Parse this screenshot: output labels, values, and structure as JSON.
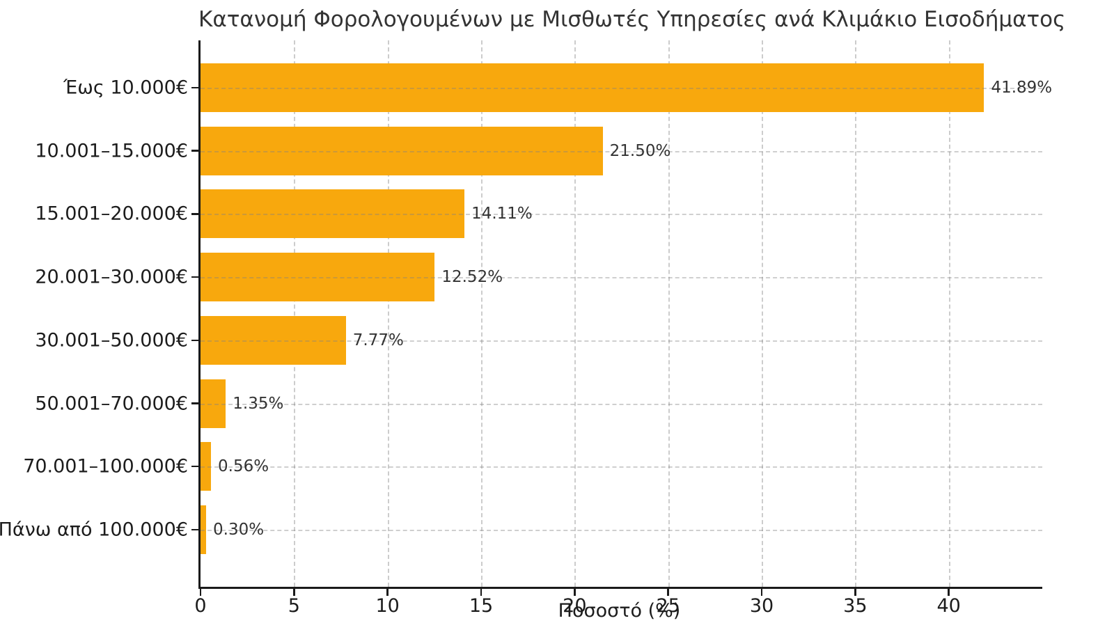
{
  "chart_data": {
    "type": "bar",
    "orientation": "horizontal",
    "title": "Κατανομή Φορολογουμένων με Μισθωτές Υπηρεσίες ανά Κλιμάκιο Εισοδήματος",
    "categories": [
      "Έως 10.000€",
      "10.001–15.000€",
      "15.001–20.000€",
      "20.001–30.000€",
      "30.001–50.000€",
      "50.001–70.000€",
      "70.001–100.000€",
      "Πάνω από 100.000€"
    ],
    "values": [
      41.89,
      21.5,
      14.11,
      12.52,
      7.77,
      1.35,
      0.56,
      0.3
    ],
    "value_labels": [
      "41.89%",
      "21.50%",
      "14.11%",
      "12.52%",
      "7.77%",
      "1.35%",
      "0.56%",
      "0.30%"
    ],
    "xlabel": "Ποσοστό (%)",
    "xlim": [
      0,
      45
    ],
    "xticks": [
      0,
      5,
      10,
      15,
      20,
      25,
      30,
      35,
      40
    ],
    "xtick_labels": [
      "0",
      "5",
      "10",
      "15",
      "20",
      "25",
      "30",
      "35",
      "40"
    ],
    "bar_color": "#F8A80D",
    "grid": "dashed",
    "legend": "none"
  }
}
